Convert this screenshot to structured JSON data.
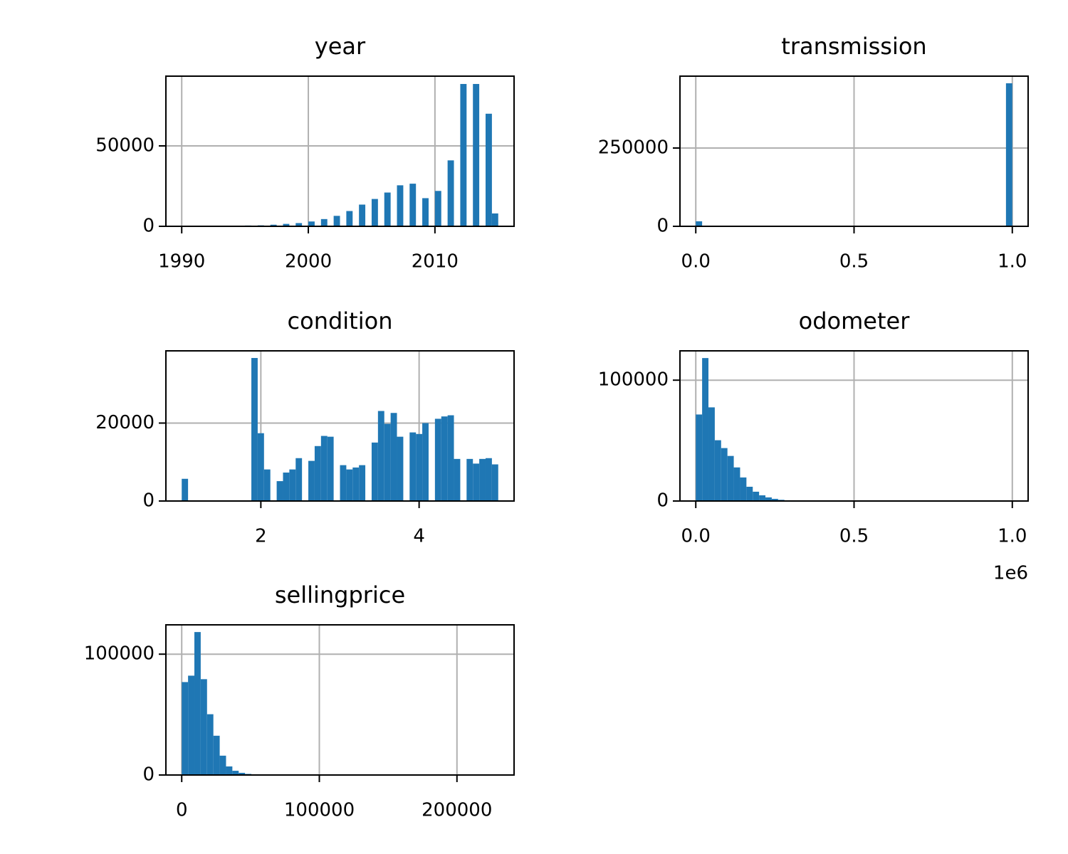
{
  "chart_data": [
    {
      "type": "histogram",
      "title": "year",
      "color": "#1f77b4",
      "grid": true,
      "bins": [
        1990,
        1990.5,
        1991,
        1991.5,
        1992,
        1992.5,
        1993,
        1993.5,
        1994,
        1994.5,
        1995,
        1995.5,
        1996,
        1996.5,
        1997,
        1997.5,
        1998,
        1998.5,
        1999,
        1999.5,
        2000,
        2000.5,
        2001,
        2001.5,
        2002,
        2002.5,
        2003,
        2003.5,
        2004,
        2004.5,
        2005,
        2005.5,
        2006,
        2006.5,
        2007,
        2007.5,
        2008,
        2008.5,
        2009,
        2009.5,
        2010,
        2010.5,
        2011,
        2011.5,
        2012,
        2012.5,
        2013,
        2013.5,
        2014,
        2014.5,
        2015
      ],
      "values": [
        20,
        0,
        30,
        0,
        60,
        0,
        150,
        0,
        300,
        0,
        500,
        0,
        600,
        0,
        1000,
        0,
        1500,
        0,
        2000,
        0,
        3000,
        0,
        4500,
        0,
        6500,
        0,
        9500,
        0,
        13500,
        0,
        17000,
        0,
        21000,
        0,
        25500,
        0,
        26500,
        0,
        17500,
        0,
        22000,
        0,
        41000,
        0,
        88500,
        0,
        88500,
        0,
        70000,
        8000
      ],
      "xlim": [
        1988.75,
        2016.25
      ],
      "xticks": [
        1990,
        2000,
        2010
      ],
      "ylim": [
        0,
        93360
      ],
      "yticks": [
        0,
        50000
      ]
    },
    {
      "type": "histogram",
      "title": "transmission",
      "color": "#1f77b4",
      "grid": true,
      "bins": [
        0,
        0.02,
        0.04,
        0.06,
        0.08,
        0.1,
        0.12,
        0.14,
        0.16,
        0.18,
        0.2,
        0.22,
        0.24,
        0.26,
        0.28,
        0.3,
        0.32,
        0.34,
        0.36,
        0.38,
        0.4,
        0.42,
        0.44,
        0.46,
        0.48,
        0.5,
        0.52,
        0.54,
        0.56,
        0.58,
        0.6,
        0.62,
        0.64,
        0.66,
        0.68,
        0.7,
        0.72,
        0.74,
        0.76,
        0.78,
        0.8,
        0.82,
        0.84,
        0.86,
        0.88,
        0.9,
        0.92,
        0.94,
        0.96,
        0.98,
        1
      ],
      "values": [
        16000,
        0,
        0,
        0,
        0,
        0,
        0,
        0,
        0,
        0,
        0,
        0,
        0,
        0,
        0,
        0,
        0,
        0,
        0,
        0,
        0,
        0,
        0,
        0,
        0,
        0,
        0,
        0,
        0,
        0,
        0,
        0,
        0,
        0,
        0,
        0,
        0,
        0,
        0,
        0,
        0,
        0,
        0,
        0,
        0,
        0,
        0,
        0,
        0,
        456700
      ],
      "xlim": [
        -0.05,
        1.05
      ],
      "xticks": [
        {
          "value": 0,
          "label": "0.0"
        },
        {
          "value": 0.5,
          "label": "0.5"
        },
        {
          "value": 1,
          "label": "1.0"
        }
      ],
      "ylim": [
        0,
        479500
      ],
      "yticks": [
        0,
        250000
      ]
    },
    {
      "type": "histogram",
      "title": "condition",
      "color": "#1f77b4",
      "grid": true,
      "bins": [
        1,
        1.08,
        1.16,
        1.24,
        1.32,
        1.4,
        1.48,
        1.56,
        1.64,
        1.72,
        1.8,
        1.88,
        1.96,
        2.04,
        2.12,
        2.2,
        2.28,
        2.36,
        2.44,
        2.52,
        2.6,
        2.68,
        2.76,
        2.84,
        2.92,
        3,
        3.08,
        3.16,
        3.24,
        3.32,
        3.4,
        3.48,
        3.56,
        3.64,
        3.72,
        3.8,
        3.88,
        3.96,
        4.04,
        4.12,
        4.2,
        4.28,
        4.36,
        4.44,
        4.52,
        4.6,
        4.68,
        4.76,
        4.84,
        4.92,
        5
      ],
      "values": [
        5700,
        0,
        0,
        0,
        0,
        0,
        0,
        0,
        0,
        0,
        0,
        36700,
        17400,
        8100,
        0,
        5100,
        7300,
        8100,
        11000,
        0,
        10300,
        14100,
        16700,
        16500,
        0,
        9200,
        8100,
        8600,
        9200,
        0,
        15000,
        23100,
        19800,
        22600,
        16500,
        0,
        17600,
        17200,
        20000,
        0,
        21100,
        21700,
        22000,
        10800,
        0,
        10800,
        9600,
        10800,
        11000,
        9400
      ],
      "xlim": [
        0.8,
        5.2
      ],
      "xticks": [
        2,
        4
      ],
      "ylim": [
        0,
        38530
      ],
      "yticks": [
        0,
        20000
      ]
    },
    {
      "type": "histogram",
      "title": "odometer",
      "color": "#1f77b4",
      "grid": true,
      "bins": [
        0,
        20000,
        40000,
        60000,
        80000,
        100000,
        120000,
        140000,
        160000,
        180000,
        200000,
        220000,
        240000,
        260000,
        280000,
        300000,
        320000,
        340000,
        360000,
        380000,
        400000,
        420000,
        440000,
        460000,
        480000,
        500000,
        520000,
        540000,
        560000,
        580000,
        600000,
        620000,
        640000,
        660000,
        680000,
        700000,
        720000,
        740000,
        760000,
        780000,
        800000,
        820000,
        840000,
        860000,
        880000,
        900000,
        920000,
        940000,
        960000,
        980000,
        1000000
      ],
      "values": [
        71600,
        118300,
        77500,
        50300,
        43800,
        37300,
        27800,
        19500,
        11800,
        7700,
        4700,
        3000,
        1800,
        1000,
        600,
        300,
        150,
        80,
        40,
        20,
        0,
        0,
        0,
        0,
        0,
        0,
        0,
        0,
        0,
        0,
        0,
        0,
        0,
        0,
        0,
        0,
        0,
        0,
        0,
        0,
        0,
        0,
        0,
        0,
        0,
        0,
        0,
        0,
        0,
        50
      ],
      "xlim": [
        -50000,
        1050000
      ],
      "xticks": [
        {
          "value": 0,
          "label": "0.0"
        },
        {
          "value": 500000,
          "label": "0.5"
        },
        {
          "value": 1000000,
          "label": "1.0"
        }
      ],
      "x_offset_label": "1e6",
      "ylim": [
        0,
        124260
      ],
      "yticks": [
        0,
        100000
      ]
    },
    {
      "type": "histogram",
      "title": "sellingprice",
      "color": "#1f77b4",
      "grid": true,
      "bins": [
        0,
        4600,
        9200,
        13800,
        18400,
        23000,
        27600,
        32200,
        36800,
        41400,
        46000,
        50600,
        55200,
        59800,
        64400,
        69000,
        73600,
        78200,
        82800,
        87400,
        92000,
        96600,
        101200,
        105800,
        110400,
        115000,
        119600,
        124200,
        128800,
        133400,
        138000,
        142600,
        147200,
        151800,
        156400,
        161000,
        165600,
        170200,
        174800,
        179400,
        184000,
        188600,
        193200,
        197800,
        202400,
        207000,
        211600,
        216200,
        220800,
        225400,
        230000
      ],
      "values": [
        76900,
        82200,
        118300,
        79300,
        50300,
        32500,
        16000,
        7100,
        3500,
        1800,
        900,
        500,
        250,
        120,
        60,
        30,
        15,
        8,
        5,
        3,
        0,
        0,
        0,
        0,
        0,
        0,
        0,
        0,
        0,
        0,
        0,
        0,
        0,
        0,
        0,
        0,
        0,
        0,
        0,
        0,
        0,
        0,
        0,
        0,
        0,
        0,
        0,
        0,
        0,
        1
      ],
      "xlim": [
        -11500,
        241500
      ],
      "xticks": [
        0,
        100000,
        200000
      ],
      "ylim": [
        0,
        124260
      ],
      "yticks": [
        0,
        100000
      ]
    }
  ]
}
